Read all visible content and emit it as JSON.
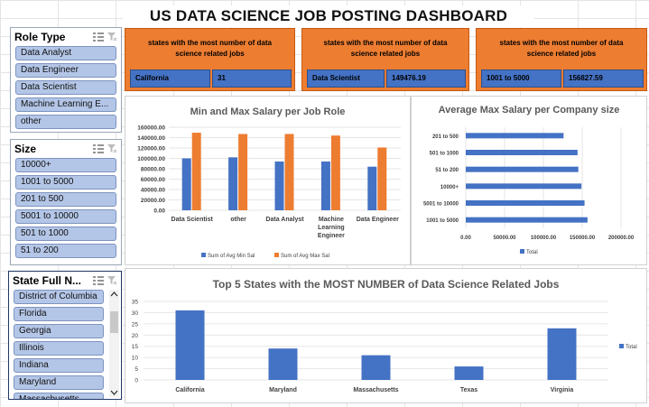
{
  "dashboard_title": "US DATA SCIENCE JOB POSTING DASHBOARD",
  "slicers": {
    "role": {
      "title": "Role Type",
      "items": [
        "Data Analyst",
        "Data Engineer",
        "Data Scientist",
        "Machine Learning E...",
        "other"
      ]
    },
    "size": {
      "title": "Size",
      "items": [
        "10000+",
        "1001 to 5000",
        "201 to 500",
        "5001 to 10000",
        "501 to 1000",
        "51 to 200"
      ]
    },
    "state": {
      "title": "State Full N...",
      "items": [
        "District of Columbia",
        "Florida",
        "Georgia",
        "Illinois",
        "Indiana",
        "Maryland",
        "Massachusetts"
      ]
    }
  },
  "cards": [
    {
      "title": "states with the most number of data science related jobs",
      "label": "California",
      "value": "31"
    },
    {
      "title": "states with the most number of data science related jobs",
      "label": "Data Scientist",
      "value": "149476.19"
    },
    {
      "title": "states with the most number of data science related jobs",
      "label": "1001 to 5000",
      "value": "156827.59"
    }
  ],
  "colors": {
    "blue": "#4472c4",
    "orange": "#ed7d31",
    "card_orange": "#ed7d31"
  },
  "chart_data": [
    {
      "type": "bar",
      "title": "Min and Max Salary per Job Role",
      "categories": [
        "Data Scientist",
        "other",
        "Data Analyst",
        "Machine Learning Engineer",
        "Data Engineer"
      ],
      "category_lines": [
        [
          "Data Scientist"
        ],
        [
          "other"
        ],
        [
          "Data Analyst"
        ],
        [
          "Machine",
          "Learning",
          "Engineer"
        ],
        [
          "Data Engineer"
        ]
      ],
      "series": [
        {
          "name": "Sum of Avg Min Sal",
          "values": [
            100000,
            102000,
            94000,
            94000,
            84000
          ]
        },
        {
          "name": "Sum of Avg Max Sal",
          "values": [
            149476.19,
            147000,
            147000,
            144000,
            121000
          ]
        }
      ],
      "ylim": [
        0,
        160000
      ],
      "yticks": [
        "0.00",
        "20000.00",
        "40000.00",
        "60000.00",
        "80000.00",
        "100000.00",
        "120000.00",
        "140000.00",
        "160000.00"
      ],
      "legend": "bottom"
    },
    {
      "type": "bar",
      "orientation": "horizontal",
      "title": "Average Max Salary per Company size",
      "categories": [
        "201 to 500",
        "501 to 1000",
        "51 to 200",
        "10000+",
        "5001 to 10000",
        "1001 to 5000"
      ],
      "values": [
        126000,
        144000,
        145000,
        149000,
        153000,
        156827.59
      ],
      "xlim": [
        0,
        200000
      ],
      "xticks": [
        "0.00",
        "50000.00",
        "100000.00",
        "150000.00",
        "200000.00"
      ],
      "series_name": "Total",
      "legend": "bottom"
    },
    {
      "type": "bar",
      "title": "Top 5 States with the MOST NUMBER of Data Science Related Jobs",
      "categories": [
        "California",
        "Maryland",
        "Massachusetts",
        "Texas",
        "Virginia"
      ],
      "values": [
        31,
        14,
        11,
        6,
        23
      ],
      "ylim": [
        0,
        35
      ],
      "yticks": [
        "0",
        "5",
        "10",
        "15",
        "20",
        "25",
        "30",
        "35"
      ],
      "series_name": "Total",
      "legend": "right"
    }
  ]
}
